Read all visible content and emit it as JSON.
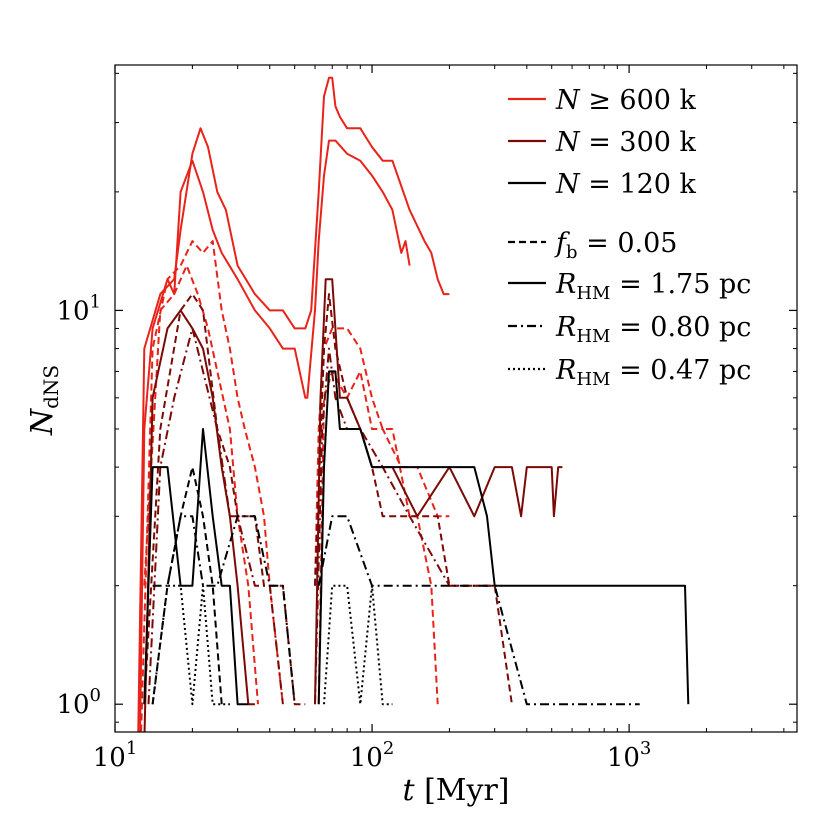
{
  "chart_data": {
    "type": "line",
    "xlabel_var": "t",
    "xlabel_unit": "[Myr]",
    "ylabel_main": "N",
    "ylabel_sub": "dNS",
    "x_scale": "log",
    "y_scale": "log",
    "xlim": [
      10,
      4500
    ],
    "ylim": [
      0.85,
      42
    ],
    "x_ticks": [
      {
        "value": 10,
        "base": "10",
        "exp": "1"
      },
      {
        "value": 100,
        "base": "10",
        "exp": "2"
      },
      {
        "value": 1000,
        "base": "10",
        "exp": "3"
      }
    ],
    "y_ticks": [
      {
        "value": 1,
        "base": "10",
        "exp": "0"
      },
      {
        "value": 10,
        "base": "10",
        "exp": "1"
      }
    ],
    "grid": false,
    "legend_placement": "top-right",
    "colors": {
      "n600": "#e8231a",
      "n300": "#7a0a06",
      "n120": "#000000"
    },
    "legend": [
      {
        "style": "solid",
        "color": "#e8231a",
        "var": "N",
        "op": " ≥ ",
        "val": "600 k"
      },
      {
        "style": "solid",
        "color": "#7a0a06",
        "var": "N",
        "op": " = ",
        "val": "300 k"
      },
      {
        "style": "solid",
        "color": "#000000",
        "var": "N",
        "op": " = ",
        "val": "120 k"
      },
      {
        "style": "dashed",
        "color": "#000000",
        "var": "f",
        "sub": "b",
        "op": " = ",
        "val": "0.05"
      },
      {
        "style": "solid",
        "color": "#000000",
        "var": "R",
        "sub": "HM",
        "op": " = ",
        "val": "1.75 pc"
      },
      {
        "style": "dashdot",
        "color": "#000000",
        "var": "R",
        "sub": "HM",
        "op": " = ",
        "val": "0.80 pc"
      },
      {
        "style": "dotted",
        "color": "#000000",
        "var": "R",
        "sub": "HM",
        "op": " = ",
        "val": "0.47 pc"
      }
    ],
    "series": [
      {
        "group": "N≥600k",
        "style": "solid",
        "color": "#e8231a",
        "points": [
          [
            12.3,
            0.8
          ],
          [
            13,
            8
          ],
          [
            15,
            11
          ],
          [
            17,
            12
          ],
          [
            18,
            16
          ],
          [
            20,
            25
          ],
          [
            21.5,
            29
          ],
          [
            23,
            26
          ],
          [
            25,
            20
          ],
          [
            27,
            18
          ],
          [
            30,
            13
          ],
          [
            35,
            11
          ],
          [
            40,
            10
          ],
          [
            45,
            10
          ],
          [
            50,
            9
          ],
          [
            55,
            9
          ],
          [
            58,
            10
          ],
          [
            62,
            20
          ],
          [
            65,
            35
          ],
          [
            68,
            39
          ],
          [
            70,
            39
          ],
          [
            72,
            33
          ],
          [
            75,
            31
          ],
          [
            80,
            29
          ],
          [
            90,
            29
          ],
          [
            100,
            26
          ],
          [
            110,
            24
          ],
          [
            120,
            24
          ],
          [
            140,
            18
          ],
          [
            160,
            15
          ],
          [
            170,
            14
          ],
          [
            180,
            12
          ],
          [
            190,
            11
          ],
          [
            200,
            11
          ]
        ]
      },
      {
        "group": "N≥600k",
        "style": "solid",
        "color": "#e8231a",
        "points": [
          [
            12.5,
            0.8
          ],
          [
            13,
            5
          ],
          [
            14,
            9
          ],
          [
            16,
            12
          ],
          [
            17,
            11
          ],
          [
            18,
            20
          ],
          [
            20,
            24
          ],
          [
            22,
            20
          ],
          [
            24,
            16
          ],
          [
            26,
            14
          ],
          [
            30,
            12
          ],
          [
            35,
            10
          ],
          [
            40,
            9
          ],
          [
            45,
            8
          ],
          [
            50,
            8
          ],
          [
            55,
            6
          ],
          [
            56,
            6
          ],
          [
            60,
            10
          ],
          [
            62,
            15
          ],
          [
            65,
            22
          ],
          [
            68,
            27
          ],
          [
            72,
            27
          ],
          [
            80,
            25
          ],
          [
            90,
            24
          ],
          [
            100,
            22
          ],
          [
            110,
            20
          ],
          [
            120,
            18
          ],
          [
            130,
            14
          ],
          [
            135,
            15
          ],
          [
            140,
            13
          ]
        ]
      },
      {
        "group": "N≥600k",
        "style": "dashed",
        "color": "#e8231a",
        "points": [
          [
            12.6,
            0.8
          ],
          [
            14,
            8
          ],
          [
            16,
            12
          ],
          [
            18,
            13
          ],
          [
            20,
            15
          ],
          [
            22,
            14
          ],
          [
            24,
            15
          ],
          [
            26,
            10
          ],
          [
            28,
            8
          ],
          [
            30,
            6
          ],
          [
            32,
            5
          ],
          [
            35,
            4
          ],
          [
            38,
            3
          ],
          [
            40,
            2
          ],
          [
            45,
            1
          ]
        ]
      },
      {
        "group": "N≥600k",
        "style": "dashed",
        "color": "#e8231a",
        "points": [
          [
            13,
            2
          ],
          [
            15,
            10
          ],
          [
            17,
            11
          ],
          [
            19,
            13
          ],
          [
            21,
            11
          ],
          [
            23,
            9
          ],
          [
            25,
            7
          ],
          [
            28,
            5
          ],
          [
            30,
            3
          ],
          [
            33,
            2
          ],
          [
            36,
            1
          ]
        ]
      },
      {
        "group": "N≥600k",
        "style": "dashed",
        "color": "#e8231a",
        "points": [
          [
            60,
            2
          ],
          [
            62,
            5
          ],
          [
            65,
            8
          ],
          [
            70,
            9
          ],
          [
            80,
            9
          ],
          [
            90,
            8
          ],
          [
            100,
            6
          ],
          [
            110,
            5
          ],
          [
            120,
            5
          ],
          [
            140,
            3
          ],
          [
            150,
            3
          ],
          [
            170,
            2
          ],
          [
            180,
            1
          ]
        ]
      },
      {
        "group": "N≥600k",
        "style": "dashed",
        "color": "#e8231a",
        "points": [
          [
            62,
            1
          ],
          [
            65,
            6
          ],
          [
            70,
            7
          ],
          [
            80,
            6
          ],
          [
            90,
            7
          ],
          [
            100,
            5
          ],
          [
            110,
            5
          ],
          [
            130,
            4
          ],
          [
            150,
            4
          ],
          [
            180,
            3
          ],
          [
            200,
            3
          ]
        ]
      },
      {
        "group": "N=300k",
        "style": "solid",
        "color": "#7a0a06",
        "points": [
          [
            13,
            0.8
          ],
          [
            14,
            6
          ],
          [
            16,
            9
          ],
          [
            18,
            10
          ],
          [
            20,
            9
          ],
          [
            22,
            8
          ],
          [
            24,
            6
          ],
          [
            26,
            4
          ],
          [
            28,
            3
          ],
          [
            30,
            2
          ],
          [
            33,
            1
          ],
          [
            35,
            1
          ]
        ]
      },
      {
        "group": "N=300k",
        "style": "solid",
        "color": "#7a0a06",
        "points": [
          [
            60,
            1
          ],
          [
            63,
            6
          ],
          [
            66,
            12
          ],
          [
            70,
            12
          ],
          [
            72,
            9
          ],
          [
            75,
            6
          ],
          [
            80,
            6
          ],
          [
            90,
            5
          ],
          [
            100,
            4
          ],
          [
            120,
            4
          ],
          [
            150,
            3
          ],
          [
            200,
            4
          ],
          [
            250,
            3
          ],
          [
            300,
            4
          ],
          [
            350,
            4
          ],
          [
            380,
            3
          ],
          [
            400,
            4
          ],
          [
            450,
            4
          ],
          [
            480,
            4
          ],
          [
            500,
            4
          ],
          [
            510,
            3
          ],
          [
            530,
            4
          ],
          [
            550,
            4
          ]
        ]
      },
      {
        "group": "N=300k",
        "style": "dashed",
        "color": "#7a0a06",
        "points": [
          [
            13,
            1
          ],
          [
            15,
            5
          ],
          [
            18,
            10
          ],
          [
            20,
            11
          ],
          [
            22,
            10
          ],
          [
            25,
            5
          ],
          [
            28,
            4
          ],
          [
            30,
            3
          ],
          [
            35,
            3
          ],
          [
            38,
            2
          ],
          [
            40,
            2
          ],
          [
            45,
            2
          ],
          [
            50,
            1
          ],
          [
            55,
            1
          ]
        ]
      },
      {
        "group": "N=300k",
        "style": "dashed",
        "color": "#7a0a06",
        "points": [
          [
            60,
            2
          ],
          [
            65,
            8
          ],
          [
            68,
            11
          ],
          [
            72,
            8
          ],
          [
            80,
            6
          ],
          [
            90,
            5
          ],
          [
            100,
            4
          ],
          [
            110,
            3
          ],
          [
            140,
            3
          ],
          [
            180,
            3
          ],
          [
            200,
            2
          ],
          [
            250,
            2
          ],
          [
            300,
            2
          ],
          [
            350,
            1
          ]
        ]
      },
      {
        "group": "N=300k",
        "style": "dashdot",
        "color": "#7a0a06",
        "points": [
          [
            13.5,
            1
          ],
          [
            15,
            4
          ],
          [
            17,
            6
          ],
          [
            20,
            9
          ],
          [
            22,
            7
          ],
          [
            25,
            5
          ],
          [
            28,
            3
          ],
          [
            30,
            3
          ],
          [
            35,
            2
          ],
          [
            40,
            2
          ],
          [
            45,
            1
          ]
        ]
      },
      {
        "group": "N=300k",
        "style": "dashdot",
        "color": "#7a0a06",
        "points": [
          [
            60,
            1
          ],
          [
            64,
            5
          ],
          [
            68,
            8
          ],
          [
            72,
            6
          ],
          [
            80,
            5
          ],
          [
            90,
            5
          ],
          [
            110,
            4
          ],
          [
            140,
            3
          ],
          [
            200,
            2
          ],
          [
            280,
            2
          ],
          [
            320,
            2
          ]
        ]
      },
      {
        "group": "N=120k",
        "style": "solid",
        "color": "#000000",
        "points": [
          [
            13,
            1
          ],
          [
            14,
            4
          ],
          [
            16,
            4
          ],
          [
            18,
            2
          ],
          [
            20,
            2
          ],
          [
            22,
            5
          ],
          [
            24,
            3
          ],
          [
            26,
            2
          ],
          [
            28,
            2
          ],
          [
            30,
            1
          ],
          [
            33,
            1
          ]
        ]
      },
      {
        "group": "N=120k",
        "style": "solid",
        "color": "#000000",
        "points": [
          [
            62,
            1
          ],
          [
            65,
            4
          ],
          [
            68,
            7
          ],
          [
            72,
            7
          ],
          [
            75,
            5
          ],
          [
            80,
            5
          ],
          [
            90,
            5
          ],
          [
            100,
            4
          ],
          [
            120,
            4
          ],
          [
            150,
            4
          ],
          [
            200,
            4
          ],
          [
            250,
            4
          ],
          [
            280,
            3
          ],
          [
            300,
            2
          ],
          [
            400,
            2
          ],
          [
            600,
            2
          ],
          [
            1000,
            2
          ],
          [
            1650,
            2
          ],
          [
            1700,
            1
          ]
        ]
      },
      {
        "group": "N=120k",
        "style": "dashed",
        "color": "#000000",
        "points": [
          [
            14,
            1
          ],
          [
            16,
            2
          ],
          [
            18,
            3
          ],
          [
            20,
            4
          ],
          [
            22,
            3
          ],
          [
            24,
            2
          ],
          [
            26,
            1
          ]
        ]
      },
      {
        "group": "N=120k",
        "style": "dashdot",
        "color": "#000000",
        "points": [
          [
            14,
            2
          ],
          [
            16,
            2
          ],
          [
            18,
            3
          ],
          [
            20,
            3
          ],
          [
            22,
            2
          ],
          [
            25,
            2
          ],
          [
            30,
            3
          ],
          [
            35,
            3
          ],
          [
            40,
            2
          ],
          [
            45,
            2
          ],
          [
            50,
            1
          ]
        ]
      },
      {
        "group": "N=120k",
        "style": "dashdot",
        "color": "#000000",
        "points": [
          [
            62,
            2
          ],
          [
            70,
            3
          ],
          [
            80,
            3
          ],
          [
            100,
            2
          ],
          [
            150,
            2
          ],
          [
            200,
            2
          ],
          [
            300,
            2
          ],
          [
            400,
            1
          ],
          [
            600,
            1
          ],
          [
            800,
            1
          ],
          [
            1100,
            1
          ]
        ]
      },
      {
        "group": "N=120k",
        "style": "dotted",
        "color": "#000000",
        "points": [
          [
            14,
            1
          ],
          [
            16,
            2
          ],
          [
            18,
            2
          ],
          [
            20,
            1
          ],
          [
            22,
            2
          ],
          [
            24,
            1
          ],
          [
            28,
            1
          ]
        ]
      },
      {
        "group": "N=120k",
        "style": "dotted",
        "color": "#000000",
        "points": [
          [
            65,
            1
          ],
          [
            70,
            2
          ],
          [
            80,
            2
          ],
          [
            90,
            1
          ],
          [
            100,
            2
          ],
          [
            110,
            1
          ],
          [
            120,
            1
          ]
        ]
      }
    ]
  }
}
